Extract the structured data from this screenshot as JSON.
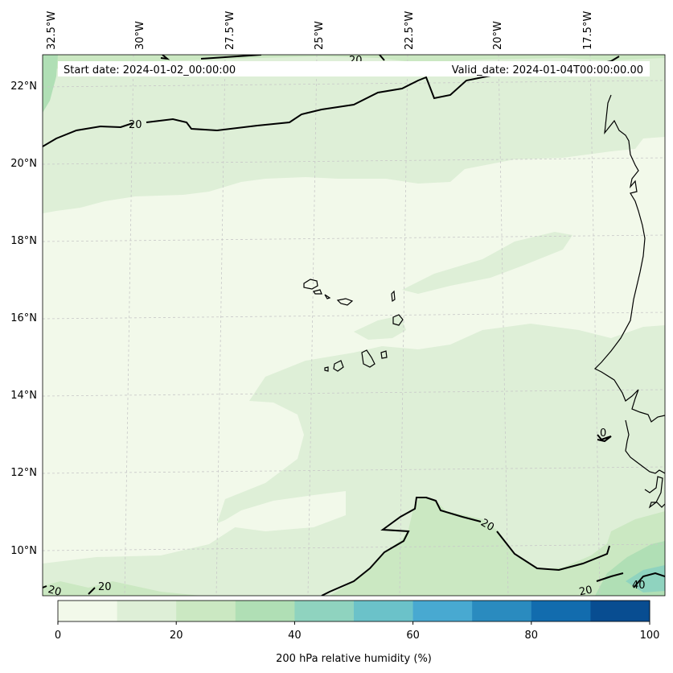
{
  "header": {
    "start_date": "Start date: 2024-01-02_00:00:00",
    "valid_date": "Valid_date: 2024-01-04T00:00:00.00"
  },
  "longitude_labels": [
    "32.5°W",
    "30°W",
    "27.5°W",
    "25°W",
    "22.5°W",
    "20°W",
    "17.5°W"
  ],
  "latitude_labels": [
    "22°N",
    "20°N",
    "18°N",
    "16°N",
    "14°N",
    "12°N",
    "10°N"
  ],
  "contour_labels": [
    "20",
    "20",
    "20",
    "20",
    "20",
    "20",
    "0",
    "40"
  ],
  "colorbar": {
    "label": "200 hPa relative humidity (%)",
    "ticks": [
      "0",
      "20",
      "40",
      "60",
      "80",
      "100"
    ],
    "levels": [
      0,
      10,
      20,
      30,
      40,
      50,
      60,
      70,
      80,
      90,
      100
    ],
    "colors": [
      "#f2f9ea",
      "#deefd7",
      "#cbe8c2",
      "#b0dfb5",
      "#8fd3bf",
      "#6bc2c9",
      "#48a9d1",
      "#2a8bbf",
      "#126cae",
      "#084d91"
    ]
  },
  "map": {
    "region": "Cabo Verde and West African coast",
    "ocean_colors": [
      "#f2f9ea",
      "#deefd7",
      "#cbe8c2",
      "#b0dfb5",
      "#8fd3bf"
    ],
    "contour_color": "#000000",
    "gridline_color": "#c8c8c8"
  }
}
